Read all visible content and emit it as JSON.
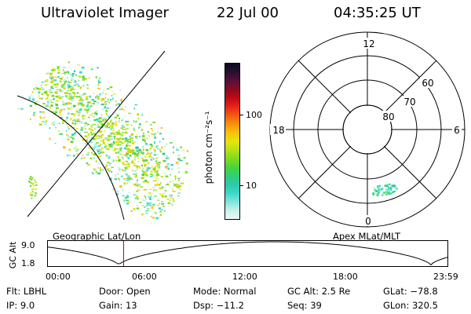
{
  "header": {
    "title": "Ultraviolet Imager",
    "date": "22 Jul 00",
    "time": "04:35:25 UT"
  },
  "colorbar": {
    "unit_label": "photon cm⁻²s⁻¹",
    "tick_labels": [
      "100",
      "10"
    ],
    "colors": [
      "#0b0b1a",
      "#2a0f2e",
      "#5a0f3a",
      "#8b0a1e",
      "#c00a14",
      "#e8241a",
      "#f25a10",
      "#f7910a",
      "#f8c10a",
      "#e6e40c",
      "#b6e213",
      "#7fdc1e",
      "#4ad43a",
      "#2ecf76",
      "#2ec8aa",
      "#3ad9c8",
      "#7fe6dc",
      "#c7f1ec",
      "#eef8f6"
    ]
  },
  "polar_plot": {
    "mlt_labels": [
      "12",
      "6",
      "0",
      "18"
    ],
    "mlat_labels": [
      "60",
      "70",
      "80"
    ]
  },
  "panel_labels": {
    "left": "Geographic Lat/Lon",
    "right": "Apex MLat/MLT"
  },
  "altitude_strip": {
    "ylabel": "GC Alt",
    "y_ticks": [
      "9.0",
      "1.8"
    ],
    "x_ticks": [
      "00:00",
      "06:00",
      "12:00",
      "18:00",
      "23:59"
    ],
    "current_time_hours": 4.59,
    "marker_color": "#cc0000"
  },
  "info": {
    "filter": "Flt: LBHL",
    "ip": "IP:  9.0",
    "door": "Door: Open",
    "gain": "Gain: 13",
    "mode": "Mode: Normal",
    "dsp": "Dsp:  −11.2",
    "gc_alt": "GC Alt: 2.5 Re",
    "seq": "Seq: 39",
    "glat": "GLat: −78.8",
    "glon": "GLon: 320.5"
  }
}
